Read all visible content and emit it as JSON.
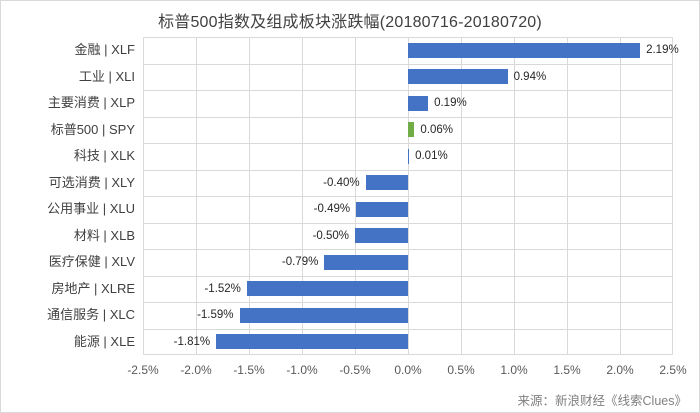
{
  "chart_data": {
    "type": "bar",
    "orientation": "horizontal",
    "title": "标普500指数及组成板块涨跌幅(20180716-20180720)",
    "categories": [
      "金融 | XLF",
      "工业 | XLI",
      "主要消费 | XLP",
      "标普500 | SPY",
      "科技 | XLK",
      "可选消费 | XLY",
      "公用事业 | XLU",
      "材料 | XLB",
      "医疗保健 | XLV",
      "房地产 | XLRE",
      "通信服务 | XLC",
      "能源 | XLE"
    ],
    "values": [
      2.19,
      0.94,
      0.19,
      0.06,
      0.01,
      -0.4,
      -0.49,
      -0.5,
      -0.79,
      -1.52,
      -1.59,
      -1.81
    ],
    "data_labels": [
      "2.19%",
      "0.94%",
      "0.19%",
      "0.06%",
      "0.01%",
      "-0.40%",
      "-0.49%",
      "-0.50%",
      "-0.79%",
      "-1.52%",
      "-1.59%",
      "-1.81%"
    ],
    "xlim": [
      -2.5,
      2.5
    ],
    "x_tick_labels": [
      "-2.5%",
      "-2.0%",
      "-1.5%",
      "-1.0%",
      "-0.5%",
      "0.0%",
      "0.5%",
      "1.0%",
      "1.5%",
      "2.0%",
      "2.5%"
    ],
    "grid": true,
    "legend": "none",
    "colors": {
      "bar_default": "#4472c4",
      "bar_highlight": "#70ad47",
      "highlight_index": 3,
      "gridline": "#d9d9d9",
      "title_text": "#404040",
      "category_text": "#404040",
      "tick_text": "#595959",
      "data_label_text": "#262626",
      "source_text": "#808080"
    }
  },
  "footer": {
    "source": "来源：新浪财经《线索Clues》"
  }
}
